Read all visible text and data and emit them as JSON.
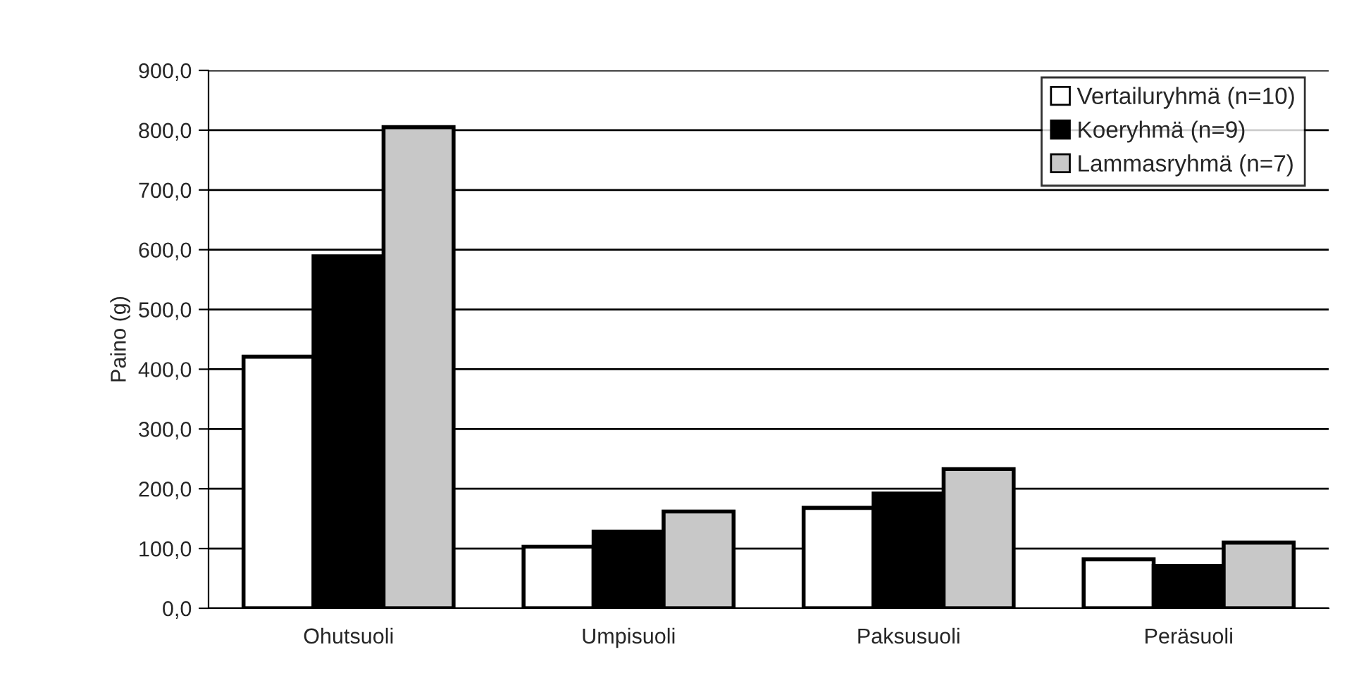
{
  "chart_data": {
    "type": "bar",
    "ylabel": "Paino (g)",
    "categories": [
      "Ohutsuoli",
      "Umpisuoli",
      "Paksusuoli",
      "Peräsuoli"
    ],
    "series": [
      {
        "name": "Vertailuryhmä (n=10)",
        "color": "#ffffff",
        "values": [
          421,
          103,
          168,
          82
        ]
      },
      {
        "name": "Koeryhmä (n=9)",
        "color": "#000000",
        "values": [
          589,
          128,
          192,
          71
        ]
      },
      {
        "name": "Lammasryhmä (n=7)",
        "color": "#c8c8c8",
        "values": [
          805,
          162,
          233,
          110
        ]
      }
    ],
    "ylim": [
      0,
      900
    ],
    "yticks": [
      {
        "value": 0,
        "label": "0,0"
      },
      {
        "value": 100,
        "label": "100,0"
      },
      {
        "value": 200,
        "label": "200,0"
      },
      {
        "value": 300,
        "label": "300,0"
      },
      {
        "value": 400,
        "label": "400,0"
      },
      {
        "value": 500,
        "label": "500,0"
      },
      {
        "value": 600,
        "label": "600,0"
      },
      {
        "value": 700,
        "label": "700,0"
      },
      {
        "value": 800,
        "label": "800,0"
      },
      {
        "value": 900,
        "label": "900,0"
      }
    ],
    "grid": "y",
    "legend": "top right"
  }
}
